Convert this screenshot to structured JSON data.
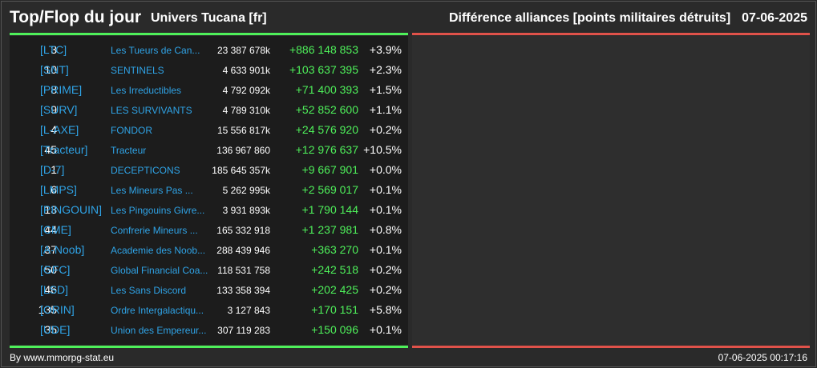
{
  "header": {
    "title": "Top/Flop du jour",
    "universe": "Univers Tucana [fr]",
    "subtitle": "Différence alliances [points militaires détruits]",
    "date": "07-06-2025"
  },
  "colors": {
    "tag": "#2fa3e6",
    "positive": "#4ef05a",
    "top_line": "#4ef05a",
    "flop_line": "#e0524a"
  },
  "top": [
    {
      "rank": "3",
      "tag": "[LTC]",
      "name": "Les Tueurs de Can...",
      "points": "23 387 678k",
      "diff": "+886 148 853",
      "pct": "+3.9%"
    },
    {
      "rank": "10",
      "tag": "[SNT]",
      "name": "SENTINELS",
      "points": "4 633 901k",
      "diff": "+103 637 395",
      "pct": "+2.3%"
    },
    {
      "rank": "8",
      "tag": "[PRIME]",
      "name": "Les Irreductibles",
      "points": "4 792 092k",
      "diff": "+71 400 393",
      "pct": "+1.5%"
    },
    {
      "rank": "9",
      "tag": "[SURV]",
      "name": "LES SURVIVANTS",
      "points": "4 789 310k",
      "diff": "+52 852 600",
      "pct": "+1.1%"
    },
    {
      "rank": "4",
      "tag": "[L-AXE]",
      "name": "FONDOR",
      "points": "15 556 817k",
      "diff": "+24 576 920",
      "pct": "+0.2%"
    },
    {
      "rank": "45",
      "tag": "[Tracteur]",
      "name": "Tracteur",
      "points": "136 967 860",
      "diff": "+12 976 637",
      "pct": "+10.5%"
    },
    {
      "rank": "1",
      "tag": "[D-7]",
      "name": "DECEPTICONS",
      "points": "185 645 357k",
      "diff": "+9 667 901",
      "pct": "+0.0%"
    },
    {
      "rank": "6",
      "tag": "[LMPS]",
      "name": "Les Mineurs Pas ...",
      "points": "5 262 995k",
      "diff": "+2 569 017",
      "pct": "+0.1%"
    },
    {
      "rank": "13",
      "tag": "[PINGOUIN]",
      "name": "Les Pingouins Givre...",
      "points": "3 931 893k",
      "diff": "+1 790 144",
      "pct": "+0.1%"
    },
    {
      "rank": "44",
      "tag": "[CME]",
      "name": "Confrerie Mineurs ...",
      "points": "165 332 918",
      "diff": "+1 237 981",
      "pct": "+0.8%"
    },
    {
      "rank": "37",
      "tag": "[A-Noob]",
      "name": "Academie des Noob...",
      "points": "288 439 946",
      "diff": "+363 270",
      "pct": "+0.1%"
    },
    {
      "rank": "50",
      "tag": "[GFC]",
      "name": "Global Financial Coa...",
      "points": "118 531 758",
      "diff": "+242 518",
      "pct": "+0.2%"
    },
    {
      "rank": "46",
      "tag": "[LSD]",
      "name": "Les Sans Discord",
      "points": "133 358 394",
      "diff": "+202 425",
      "pct": "+0.2%"
    },
    {
      "rank": "135",
      "tag": "[ORIN]",
      "name": "Ordre Intergalactiqu...",
      "points": "3 127 843",
      "diff": "+170 151",
      "pct": "+5.8%"
    },
    {
      "rank": "35",
      "tag": "[UDE]",
      "name": "Union des Empereur...",
      "points": "307 119 283",
      "diff": "+150 096",
      "pct": "+0.1%"
    }
  ],
  "footer": {
    "credit": "By www.mmorpg-stat.eu",
    "timestamp": "07-06-2025 00:17:16"
  }
}
